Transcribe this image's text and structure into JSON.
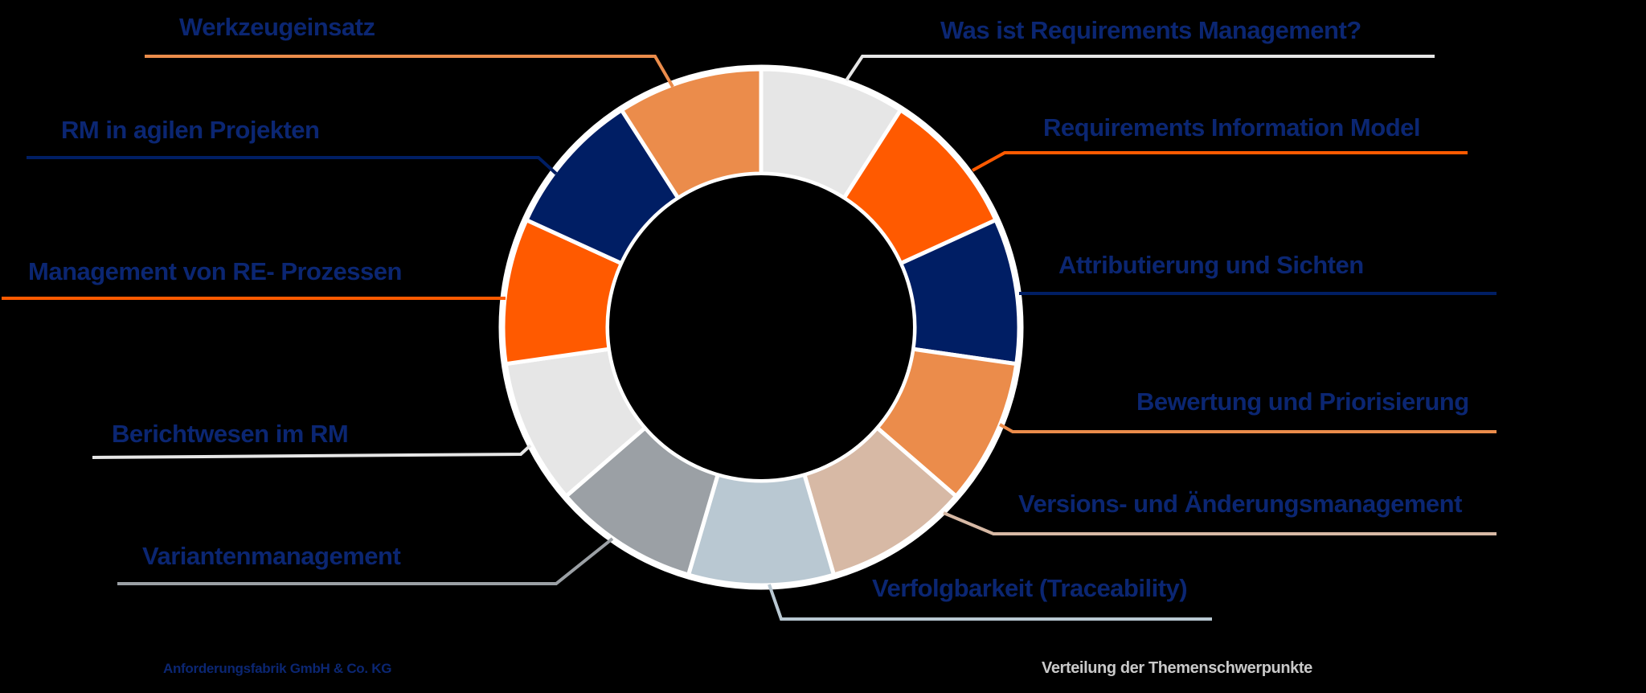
{
  "chart_data": {
    "type": "pie",
    "subtype": "donut",
    "title": "Verteilung der Themenschwerpunkte",
    "categories": [
      "Was ist Requirements Management?",
      "Requirements Information Model",
      "Attributierung und Sichten",
      "Bewertung und Priorisierung",
      "Versions- und Änderungsmanagement",
      "Verfolgbarkeit (Traceability)",
      "Variantenmanagement",
      "Berichtwesen im RM",
      "Management von RE- Prozessen",
      "RM in agilen Projekten",
      "Werkzeugeinsatz"
    ],
    "values": [
      1,
      1,
      1,
      1,
      1,
      1,
      1,
      1,
      1,
      1,
      1
    ],
    "colors": [
      "#e6e6e6",
      "#ff5a00",
      "#001e64",
      "#eb8c4b",
      "#d7b9a5",
      "#b9c8d2",
      "#9ba0a5",
      "#e6e6e6",
      "#ff5a00",
      "#001e64",
      "#eb8c4b"
    ],
    "start_angle": "12 o'clock",
    "direction": "clockwise",
    "legend_position": "leader-line labels around ring"
  },
  "labels": {
    "werkzeugeinsatz": "Werkzeugeinsatz",
    "was_ist_rm": "Was ist Requirements Management?",
    "rm_agil": "RM in agilen Projekten",
    "rim": "Requirements Information Model",
    "management_re": "Management von RE- Prozessen",
    "attributierung": "Attributierung und Sichten",
    "bewertung": "Bewertung und Priorisierung",
    "berichtwesen": "Berichtwesen im RM",
    "versions": "Versions- und Änderungsmanagement",
    "varianten": "Variantenmanagement",
    "verfolgbarkeit": "Verfolgbarkeit (Traceability)"
  },
  "footer": {
    "company": "Anforderungsfabrik GmbH & Co. KG",
    "caption": "Verteilung der Themenschwerpunkte"
  },
  "colors": {
    "text_primary": "#0b2672",
    "background": "#000000",
    "separator": "#ffffff"
  }
}
